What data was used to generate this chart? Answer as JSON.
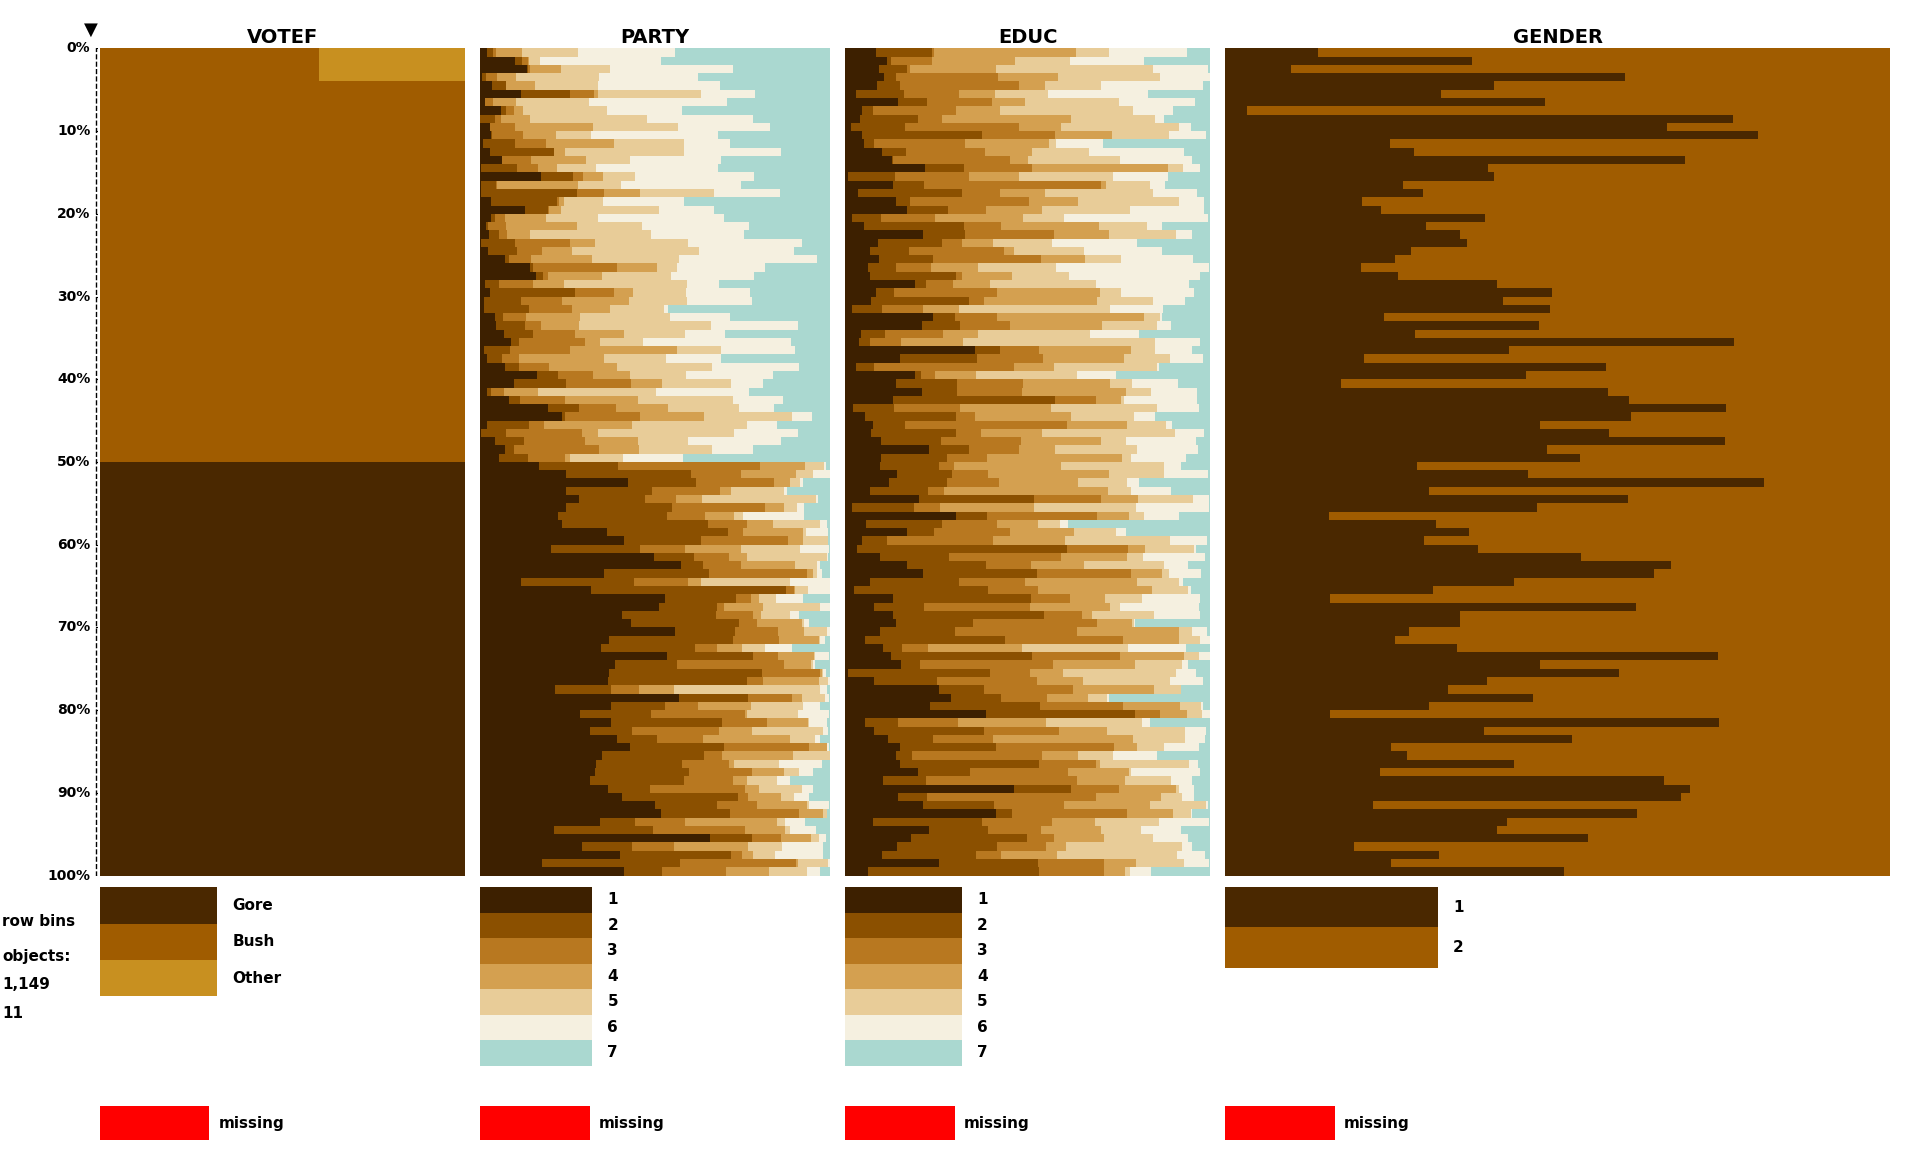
{
  "columns": [
    "VOTEF",
    "PARTY",
    "EDUC",
    "GENDER"
  ],
  "n_bins": 100,
  "background_color": "#ffffff",
  "votef_colors": [
    "#4A2800",
    "#A05C00",
    "#C89020"
  ],
  "party_colors": [
    "#3D2000",
    "#8B5000",
    "#B87820",
    "#D4A050",
    "#E8CC98",
    "#F5F0E0",
    "#AAD8D0"
  ],
  "educ_colors": [
    "#3D2000",
    "#8B5000",
    "#B87820",
    "#D4A050",
    "#E8CC98",
    "#F5F0E0",
    "#AAD8D0"
  ],
  "gender_colors": [
    "#4A2800",
    "#A05C00"
  ],
  "votef_legend_labels": [
    "Gore",
    "Bush",
    "Other"
  ],
  "party_legend_labels": [
    "1",
    "2",
    "3",
    "4",
    "5",
    "6",
    "7"
  ],
  "educ_legend_labels": [
    "1",
    "2",
    "3",
    "4",
    "5",
    "6",
    "7"
  ],
  "gender_legend_labels": [
    "1",
    "2"
  ],
  "missing_color": "#FF0000",
  "row_bins_text": "row bins",
  "objects_text": "objects:",
  "n_objects": "1,149",
  "n_missing": "11",
  "sort_arrow": "▼",
  "y_tick_labels": [
    "0%",
    "10%",
    "20%",
    "30%",
    "40%",
    "50%",
    "60%",
    "70%",
    "80%",
    "90%",
    "100%"
  ]
}
